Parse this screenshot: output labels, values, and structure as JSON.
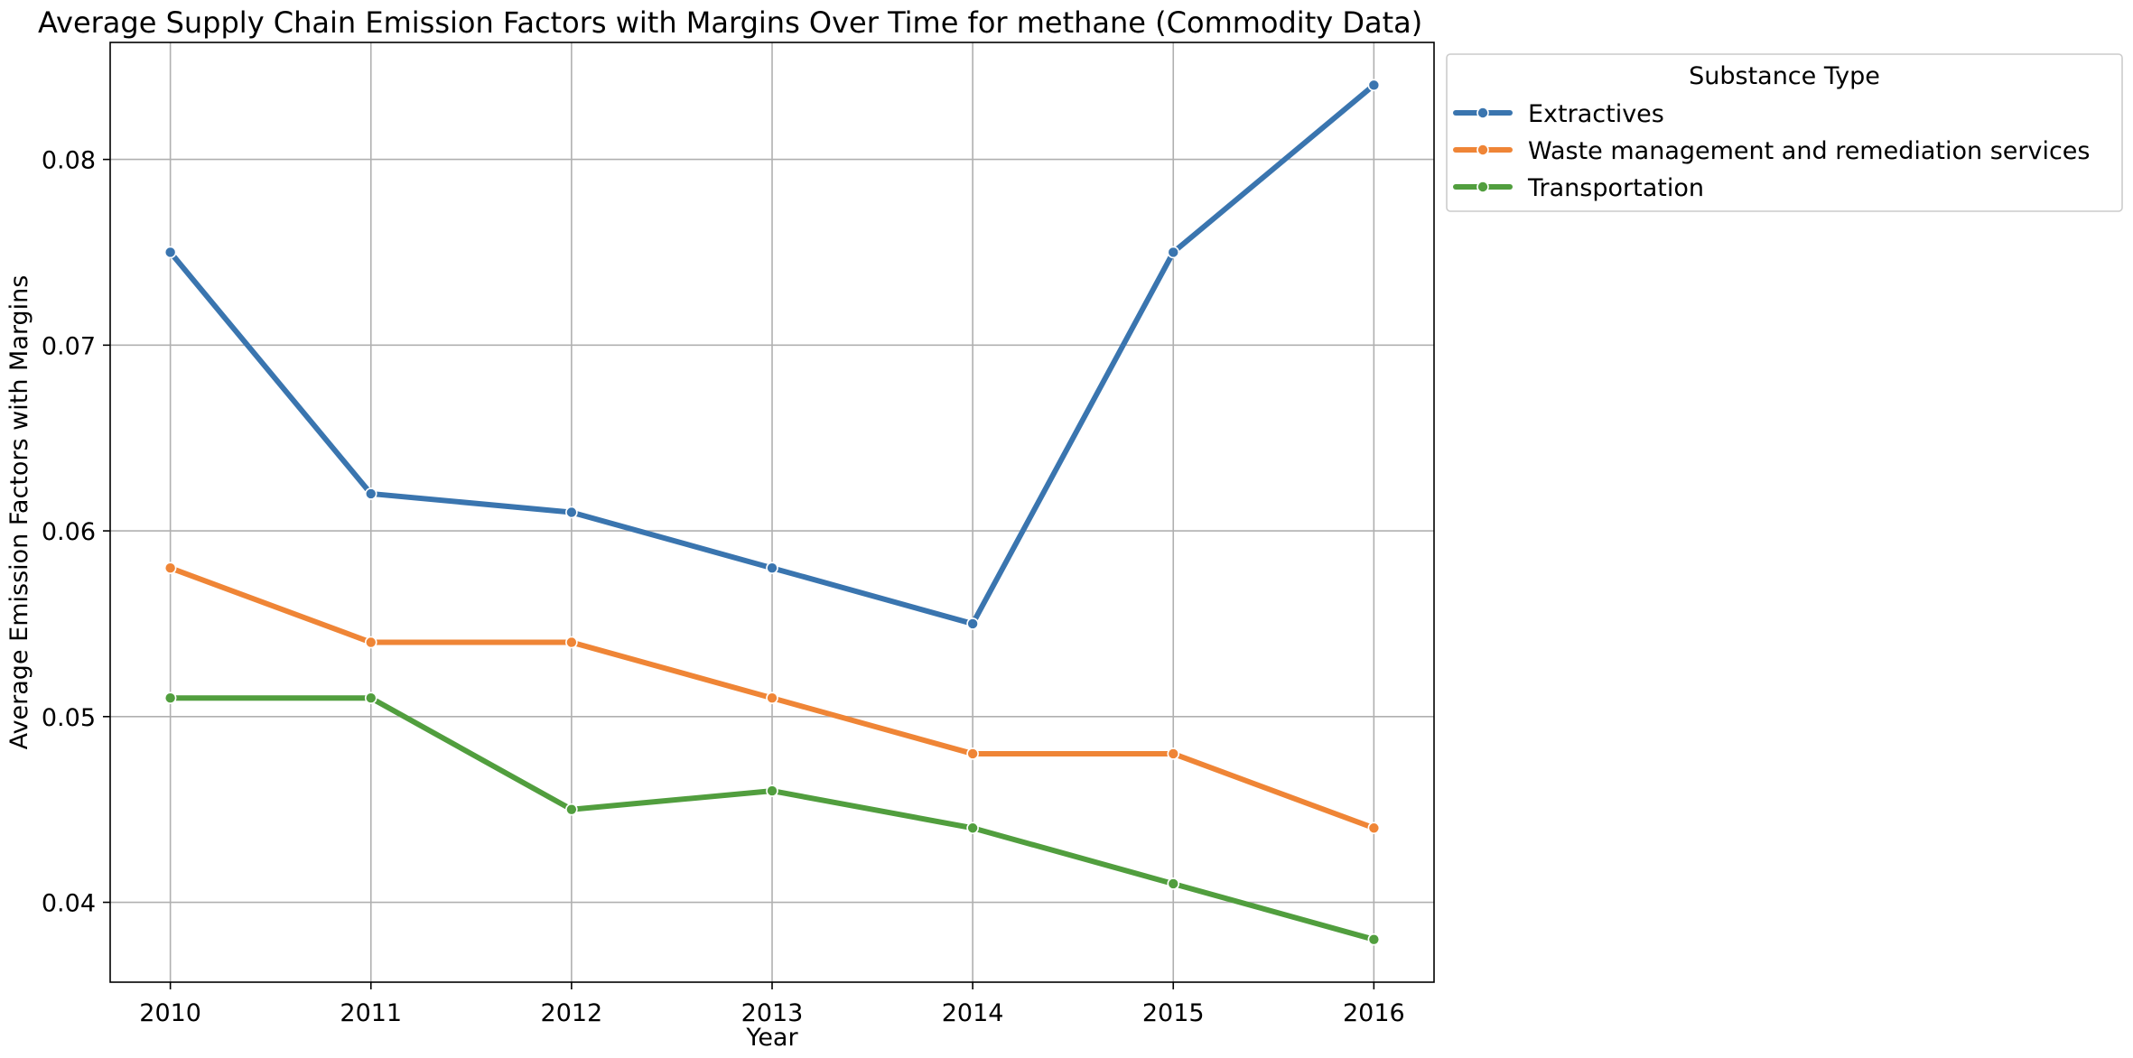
{
  "chart_data": {
    "type": "line",
    "title": "Average Supply Chain Emission Factors with Margins Over Time for methane (Commodity Data)",
    "xlabel": "Year",
    "ylabel": "Average Emission Factors with Margins",
    "x": [
      2010,
      2011,
      2012,
      2013,
      2014,
      2015,
      2016
    ],
    "x_tick_labels": [
      "2010",
      "2011",
      "2012",
      "2013",
      "2014",
      "2015",
      "2016"
    ],
    "y_ticks": [
      0.04,
      0.05,
      0.06,
      0.07,
      0.08
    ],
    "y_tick_labels": [
      "0.04",
      "0.05",
      "0.06",
      "0.07",
      "0.08"
    ],
    "xlim": [
      2009.7,
      2016.3
    ],
    "ylim": [
      0.0357,
      0.0863
    ],
    "grid": true,
    "legend": {
      "title": "Substance Type",
      "placement": "outside-upper-right"
    },
    "series": [
      {
        "name": "Extractives",
        "color": "#3a75af",
        "values": [
          0.075,
          0.062,
          0.061,
          0.058,
          0.055,
          0.075,
          0.084
        ]
      },
      {
        "name": "Waste management and remediation services",
        "color": "#ef8536",
        "values": [
          0.058,
          0.054,
          0.054,
          0.051,
          0.048,
          0.048,
          0.044
        ]
      },
      {
        "name": "Transportation",
        "color": "#519e3e",
        "values": [
          0.051,
          0.051,
          0.045,
          0.046,
          0.044,
          0.041,
          0.038
        ]
      }
    ]
  }
}
